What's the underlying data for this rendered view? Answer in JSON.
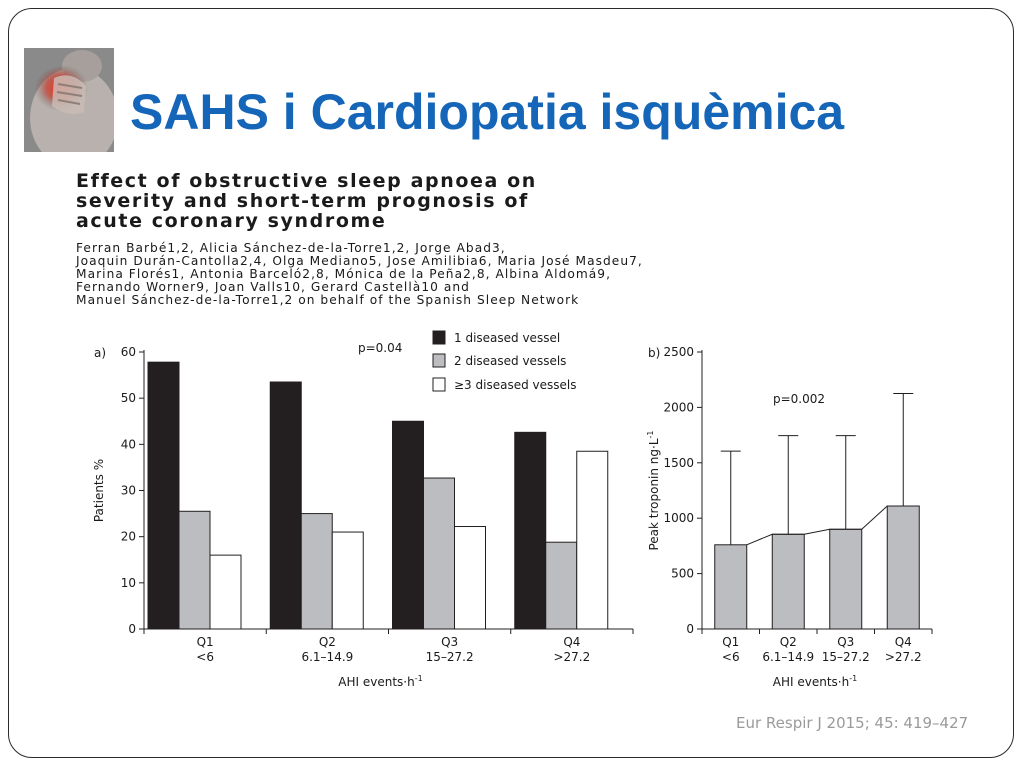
{
  "slide": {
    "title": "SAHS i Cardiopatia isquèmica",
    "photo_icon": "heart-pain-photo"
  },
  "paper": {
    "title_lines": [
      "Effect of obstructive sleep apnoea on",
      "severity and short-term prognosis of",
      "acute coronary syndrome"
    ],
    "author_lines": [
      "Ferran Barbé1,2, Alicia Sánchez-de-la-Torre1,2, Jorge Abad3,",
      "Joaquin Durán-Cantolla2,4, Olga Mediano5, Jose Amilibia6, Maria José Masdeu7,",
      "Marina Florés1, Antonia Barceló2,8, Mónica de la Peña2,8, Albina Aldomá9,",
      "Fernando Worner9, Joan Valls10, Gerard Castellà10 and",
      "Manuel Sánchez-de-la-Torre1,2 on behalf of the Spanish Sleep Network"
    ]
  },
  "citation": "Eur Respir J 2015; 45: 419–427",
  "colors": {
    "title_blue": "#1565b8",
    "bar_black": "#231f20",
    "bar_grey": "#bcbdc0",
    "bar_white": "#ffffff"
  },
  "chart_data": [
    {
      "type": "bar",
      "panel_label": "a)",
      "categories": [
        "Q1",
        "Q2",
        "Q3",
        "Q4"
      ],
      "category_sublabels": [
        "<6",
        "6.1–14.9",
        "15–27.2",
        ">27.2"
      ],
      "series": [
        {
          "name": "1 diseased vessel",
          "values": [
            57.8,
            53.5,
            45.0,
            42.6
          ]
        },
        {
          "name": "2 diseased vessels",
          "values": [
            25.5,
            25.0,
            32.7,
            18.8
          ]
        },
        {
          "name": "≥3 diseased vessels",
          "values": [
            16.0,
            21.0,
            22.2,
            38.5
          ]
        }
      ],
      "ylabel": "Patients %",
      "xlabel": "AHI events·h-1",
      "ylim": [
        0,
        60
      ],
      "yticks": [
        "0",
        "10",
        "20",
        "30",
        "40",
        "50",
        "60"
      ],
      "annotation": "p=0.04",
      "legend_position": "top-right",
      "grid": false
    },
    {
      "type": "bar",
      "panel_label": "b)",
      "categories": [
        "Q1",
        "Q2",
        "Q3",
        "Q4"
      ],
      "category_sublabels": [
        "<6",
        "6.1–14.9",
        "15–27.2",
        ">27.2"
      ],
      "values": [
        760,
        855,
        900,
        1110
      ],
      "error_upper": [
        1605,
        1745,
        1745,
        2125
      ],
      "ylabel": "Peak troponin ng·L-1",
      "xlabel": "AHI events·h-1",
      "ylim": [
        0,
        2500
      ],
      "yticks": [
        "0",
        "500",
        "1000",
        "1500",
        "2000",
        "2500"
      ],
      "annotation": "p=0.002",
      "grid": false
    }
  ]
}
